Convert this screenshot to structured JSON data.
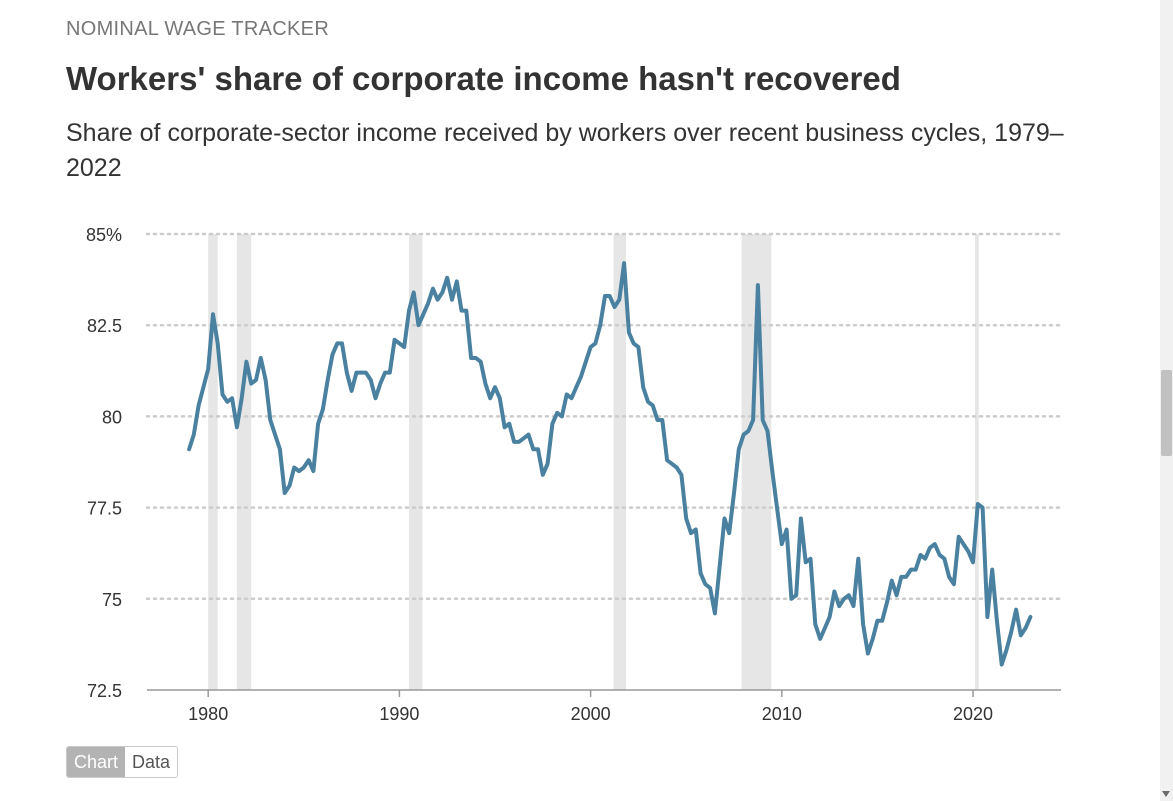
{
  "header": {
    "kicker": "NOMINAL WAGE TRACKER",
    "title": "Workers' share of corporate income hasn't recovered",
    "subtitle": "Share of corporate-sector income received by workers over recent business cycles, 1979–2022"
  },
  "toggle": {
    "chart_label": "Chart",
    "data_label": "Data",
    "active": "chart"
  },
  "colors": {
    "line": "#4a80a0",
    "recession": "#e6e6e6",
    "grid": "#cccccc",
    "axis": "#999999",
    "text": "#333333"
  },
  "chart_data": {
    "type": "line",
    "title": "",
    "xlabel": "",
    "ylabel": "",
    "xlim": [
      1976.8,
      2024.6
    ],
    "ylim": [
      72.5,
      85
    ],
    "x_ticks": [
      1980,
      1990,
      2000,
      2010,
      2020
    ],
    "x_tick_labels": [
      "1980",
      "1990",
      "2000",
      "2010",
      "2020"
    ],
    "y_ticks": [
      72.5,
      75,
      77.5,
      80,
      82.5,
      85
    ],
    "y_tick_labels": [
      "72.5",
      "75",
      "77.5",
      "80",
      "82.5",
      "85%"
    ],
    "grid": "horizontal dotted",
    "recessions": [
      {
        "start": 1980.0,
        "end": 1980.5
      },
      {
        "start": 1981.5,
        "end": 1982.25
      },
      {
        "start": 1990.5,
        "end": 1991.2
      },
      {
        "start": 2001.2,
        "end": 2001.85
      },
      {
        "start": 2007.9,
        "end": 2009.45
      },
      {
        "start": 2020.1,
        "end": 2020.3
      }
    ],
    "series": [
      {
        "values": [
          [
            1979.0,
            79.1
          ],
          [
            1979.25,
            79.5
          ],
          [
            1979.5,
            80.3
          ],
          [
            1979.75,
            80.8
          ],
          [
            1980.0,
            81.3
          ],
          [
            1980.25,
            82.8
          ],
          [
            1980.5,
            82.0
          ],
          [
            1980.75,
            80.6
          ],
          [
            1981.0,
            80.4
          ],
          [
            1981.25,
            80.5
          ],
          [
            1981.5,
            79.7
          ],
          [
            1981.75,
            80.5
          ],
          [
            1982.0,
            81.5
          ],
          [
            1982.25,
            80.9
          ],
          [
            1982.5,
            81.0
          ],
          [
            1982.75,
            81.6
          ],
          [
            1983.0,
            81.0
          ],
          [
            1983.25,
            79.9
          ],
          [
            1983.5,
            79.5
          ],
          [
            1983.75,
            79.1
          ],
          [
            1984.0,
            77.9
          ],
          [
            1984.25,
            78.1
          ],
          [
            1984.5,
            78.6
          ],
          [
            1984.75,
            78.5
          ],
          [
            1985.0,
            78.6
          ],
          [
            1985.25,
            78.8
          ],
          [
            1985.5,
            78.5
          ],
          [
            1985.75,
            79.8
          ],
          [
            1986.0,
            80.2
          ],
          [
            1986.25,
            81.0
          ],
          [
            1986.5,
            81.7
          ],
          [
            1986.75,
            82.0
          ],
          [
            1987.0,
            82.0
          ],
          [
            1987.25,
            81.2
          ],
          [
            1987.5,
            80.7
          ],
          [
            1987.75,
            81.2
          ],
          [
            1988.0,
            81.2
          ],
          [
            1988.25,
            81.2
          ],
          [
            1988.5,
            81.0
          ],
          [
            1988.75,
            80.5
          ],
          [
            1989.0,
            80.9
          ],
          [
            1989.25,
            81.2
          ],
          [
            1989.5,
            81.2
          ],
          [
            1989.75,
            82.1
          ],
          [
            1990.0,
            82.0
          ],
          [
            1990.25,
            81.9
          ],
          [
            1990.5,
            82.9
          ],
          [
            1990.75,
            83.4
          ],
          [
            1991.0,
            82.5
          ],
          [
            1991.25,
            82.8
          ],
          [
            1991.5,
            83.1
          ],
          [
            1991.75,
            83.5
          ],
          [
            1992.0,
            83.2
          ],
          [
            1992.25,
            83.4
          ],
          [
            1992.5,
            83.8
          ],
          [
            1992.75,
            83.2
          ],
          [
            1993.0,
            83.7
          ],
          [
            1993.25,
            82.9
          ],
          [
            1993.5,
            82.9
          ],
          [
            1993.75,
            81.6
          ],
          [
            1994.0,
            81.6
          ],
          [
            1994.25,
            81.5
          ],
          [
            1994.5,
            80.9
          ],
          [
            1994.75,
            80.5
          ],
          [
            1995.0,
            80.8
          ],
          [
            1995.25,
            80.5
          ],
          [
            1995.5,
            79.7
          ],
          [
            1995.75,
            79.8
          ],
          [
            1996.0,
            79.3
          ],
          [
            1996.25,
            79.3
          ],
          [
            1996.5,
            79.4
          ],
          [
            1996.75,
            79.5
          ],
          [
            1997.0,
            79.1
          ],
          [
            1997.25,
            79.1
          ],
          [
            1997.5,
            78.4
          ],
          [
            1997.75,
            78.7
          ],
          [
            1998.0,
            79.8
          ],
          [
            1998.25,
            80.1
          ],
          [
            1998.5,
            80.0
          ],
          [
            1998.75,
            80.6
          ],
          [
            1999.0,
            80.5
          ],
          [
            1999.25,
            80.8
          ],
          [
            1999.5,
            81.1
          ],
          [
            1999.75,
            81.5
          ],
          [
            2000.0,
            81.9
          ],
          [
            2000.25,
            82.0
          ],
          [
            2000.5,
            82.5
          ],
          [
            2000.75,
            83.3
          ],
          [
            2001.0,
            83.3
          ],
          [
            2001.25,
            83.0
          ],
          [
            2001.5,
            83.2
          ],
          [
            2001.75,
            84.2
          ],
          [
            2002.0,
            82.3
          ],
          [
            2002.25,
            82.0
          ],
          [
            2002.5,
            81.9
          ],
          [
            2002.75,
            80.8
          ],
          [
            2003.0,
            80.4
          ],
          [
            2003.25,
            80.3
          ],
          [
            2003.5,
            79.9
          ],
          [
            2003.75,
            79.9
          ],
          [
            2004.0,
            78.8
          ],
          [
            2004.25,
            78.7
          ],
          [
            2004.5,
            78.6
          ],
          [
            2004.75,
            78.4
          ],
          [
            2005.0,
            77.2
          ],
          [
            2005.25,
            76.8
          ],
          [
            2005.5,
            76.9
          ],
          [
            2005.75,
            75.7
          ],
          [
            2006.0,
            75.4
          ],
          [
            2006.25,
            75.3
          ],
          [
            2006.5,
            74.6
          ],
          [
            2006.75,
            75.9
          ],
          [
            2007.0,
            77.2
          ],
          [
            2007.25,
            76.8
          ],
          [
            2007.5,
            77.9
          ],
          [
            2007.75,
            79.1
          ],
          [
            2008.0,
            79.5
          ],
          [
            2008.25,
            79.6
          ],
          [
            2008.5,
            79.9
          ],
          [
            2008.75,
            83.6
          ],
          [
            2009.0,
            79.9
          ],
          [
            2009.25,
            79.6
          ],
          [
            2009.5,
            78.5
          ],
          [
            2009.75,
            77.5
          ],
          [
            2010.0,
            76.5
          ],
          [
            2010.25,
            76.9
          ],
          [
            2010.5,
            75.0
          ],
          [
            2010.75,
            75.1
          ],
          [
            2011.0,
            77.2
          ],
          [
            2011.25,
            76.0
          ],
          [
            2011.5,
            76.1
          ],
          [
            2011.75,
            74.3
          ],
          [
            2012.0,
            73.9
          ],
          [
            2012.25,
            74.2
          ],
          [
            2012.5,
            74.5
          ],
          [
            2012.75,
            75.2
          ],
          [
            2013.0,
            74.8
          ],
          [
            2013.25,
            75.0
          ],
          [
            2013.5,
            75.1
          ],
          [
            2013.75,
            74.8
          ],
          [
            2014.0,
            76.1
          ],
          [
            2014.25,
            74.3
          ],
          [
            2014.5,
            73.5
          ],
          [
            2014.75,
            73.9
          ],
          [
            2015.0,
            74.4
          ],
          [
            2015.25,
            74.4
          ],
          [
            2015.5,
            74.9
          ],
          [
            2015.75,
            75.5
          ],
          [
            2016.0,
            75.1
          ],
          [
            2016.25,
            75.6
          ],
          [
            2016.5,
            75.6
          ],
          [
            2016.75,
            75.8
          ],
          [
            2017.0,
            75.8
          ],
          [
            2017.25,
            76.2
          ],
          [
            2017.5,
            76.1
          ],
          [
            2017.75,
            76.4
          ],
          [
            2018.0,
            76.5
          ],
          [
            2018.25,
            76.2
          ],
          [
            2018.5,
            76.1
          ],
          [
            2018.75,
            75.6
          ],
          [
            2019.0,
            75.4
          ],
          [
            2019.25,
            76.7
          ],
          [
            2019.5,
            76.5
          ],
          [
            2019.75,
            76.3
          ],
          [
            2020.0,
            76.0
          ],
          [
            2020.25,
            77.6
          ],
          [
            2020.5,
            77.5
          ],
          [
            2020.75,
            74.5
          ],
          [
            2021.0,
            75.8
          ],
          [
            2021.25,
            74.4
          ],
          [
            2021.5,
            73.2
          ],
          [
            2021.75,
            73.6
          ],
          [
            2022.0,
            74.1
          ],
          [
            2022.25,
            74.7
          ],
          [
            2022.5,
            74.0
          ],
          [
            2022.75,
            74.2
          ],
          [
            2023.0,
            74.5
          ]
        ]
      }
    ]
  }
}
